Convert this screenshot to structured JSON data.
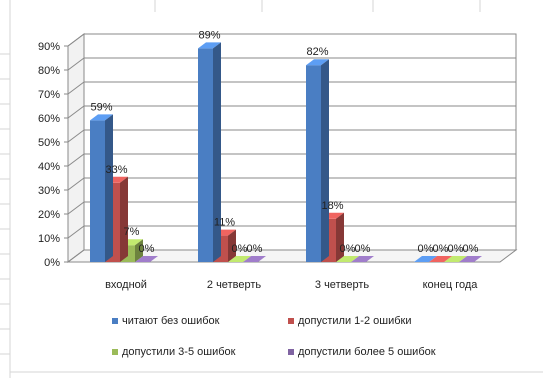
{
  "chart_data": {
    "type": "bar",
    "categories": [
      "входной",
      "2 четверть",
      "3 четверть",
      "конец года"
    ],
    "series": [
      {
        "name": "читают без ошибок",
        "values": [
          59,
          89,
          82,
          0
        ],
        "labels": [
          "59%",
          "89%",
          "82%",
          "0%"
        ],
        "color": "#4a7ec3"
      },
      {
        "name": "допустили 1-2 ошибки",
        "values": [
          33,
          11,
          18,
          0
        ],
        "labels": [
          "33%",
          "11%",
          "18%",
          "0%"
        ],
        "color": "#c0504d"
      },
      {
        "name": "допустили 3-5 ошибок",
        "values": [
          7,
          0,
          0,
          0
        ],
        "labels": [
          "7%",
          "0%",
          "0%",
          "0%"
        ],
        "color": "#9bbb59"
      },
      {
        "name": "допустили более 5 ошибок",
        "values": [
          0,
          0,
          0,
          0
        ],
        "labels": [
          "0%",
          "0%",
          "0%",
          "0%"
        ],
        "color": "#8064a2"
      }
    ],
    "yticks": [
      "0%",
      "10%",
      "20%",
      "30%",
      "40%",
      "50%",
      "60%",
      "70%",
      "80%",
      "90%"
    ],
    "ylim": [
      0,
      90
    ],
    "grid": true,
    "legend": "bottom",
    "three_d": true
  }
}
